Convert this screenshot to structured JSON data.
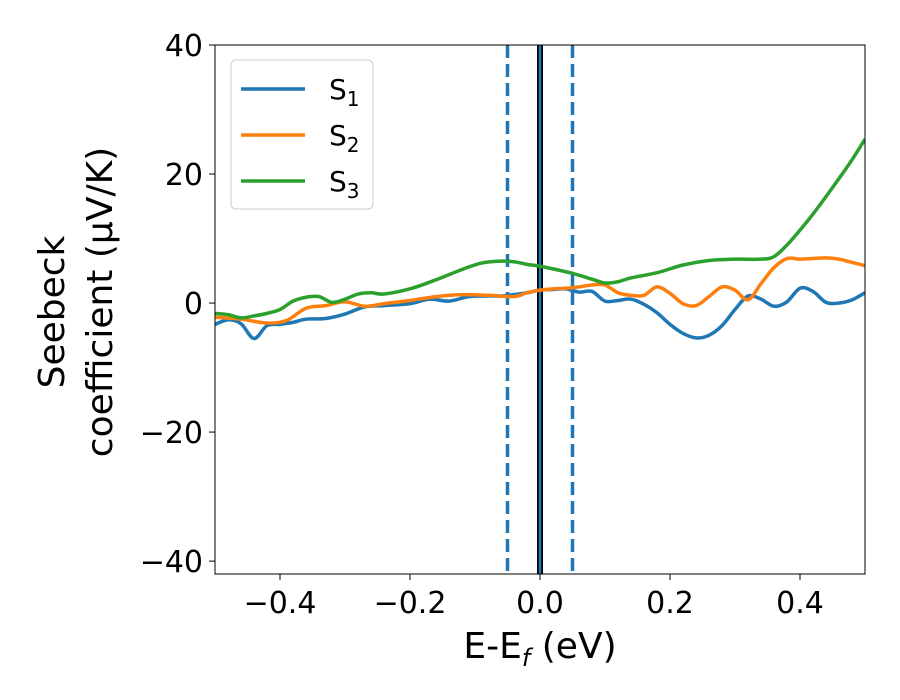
{
  "chart_data": {
    "type": "line",
    "xlabel": {
      "base": "E-E",
      "sub": "f",
      "unit": " (eV)"
    },
    "ylabel": {
      "line1": "Seebeck",
      "line2": "coefficient  (μV/K)"
    },
    "xlim": [
      -0.5,
      0.5
    ],
    "ylim": [
      -42,
      40
    ],
    "xticks": [
      -0.4,
      -0.2,
      0.0,
      0.2,
      0.4
    ],
    "xtick_labels": [
      "−0.4",
      "−0.2",
      "0.0",
      "0.2",
      "0.4"
    ],
    "yticks": [
      -40,
      -20,
      0,
      20,
      40
    ],
    "ytick_labels": [
      "−40",
      "−20",
      "0",
      "20",
      "40"
    ],
    "grid": false,
    "legend_position": "top-left",
    "vlines": [
      {
        "x": -0.05,
        "style": "dashed",
        "color": "#1f77b4"
      },
      {
        "x": 0.05,
        "style": "dashed",
        "color": "#1f77b4"
      },
      {
        "x": 0.0,
        "style": "solid",
        "color": "#000000"
      },
      {
        "x": 0.0,
        "style": "solid",
        "color": "#1f77b4"
      }
    ],
    "series": [
      {
        "name": "S",
        "sub": "1",
        "color": "#1f77b4",
        "points": [
          [
            -0.5,
            -3.3
          ],
          [
            -0.48,
            -2.6
          ],
          [
            -0.46,
            -3.2
          ],
          [
            -0.44,
            -5.5
          ],
          [
            -0.42,
            -3.5
          ],
          [
            -0.4,
            -3.3
          ],
          [
            -0.38,
            -3.0
          ],
          [
            -0.36,
            -2.5
          ],
          [
            -0.33,
            -2.4
          ],
          [
            -0.3,
            -1.7
          ],
          [
            -0.27,
            -0.6
          ],
          [
            -0.24,
            -0.4
          ],
          [
            -0.2,
            -0.1
          ],
          [
            -0.17,
            0.6
          ],
          [
            -0.14,
            0.3
          ],
          [
            -0.11,
            1.0
          ],
          [
            -0.08,
            1.1
          ],
          [
            -0.06,
            1.1
          ],
          [
            -0.04,
            1.3
          ],
          [
            -0.02,
            1.6
          ],
          [
            0.0,
            2.0
          ],
          [
            0.02,
            2.1
          ],
          [
            0.04,
            2.2
          ],
          [
            0.06,
            1.7
          ],
          [
            0.08,
            1.8
          ],
          [
            0.1,
            0.3
          ],
          [
            0.12,
            0.4
          ],
          [
            0.14,
            0.6
          ],
          [
            0.16,
            -0.2
          ],
          [
            0.18,
            -1.5
          ],
          [
            0.2,
            -3.3
          ],
          [
            0.22,
            -4.7
          ],
          [
            0.24,
            -5.4
          ],
          [
            0.26,
            -5.0
          ],
          [
            0.28,
            -3.5
          ],
          [
            0.3,
            -1.0
          ],
          [
            0.32,
            1.1
          ],
          [
            0.34,
            0.6
          ],
          [
            0.36,
            -0.5
          ],
          [
            0.38,
            0.2
          ],
          [
            0.4,
            2.3
          ],
          [
            0.42,
            1.8
          ],
          [
            0.44,
            0.1
          ],
          [
            0.46,
            0.0
          ],
          [
            0.48,
            0.5
          ],
          [
            0.5,
            1.6
          ]
        ]
      },
      {
        "name": "S",
        "sub": "2",
        "color": "#ff7f0e",
        "points": [
          [
            -0.5,
            -2.2
          ],
          [
            -0.46,
            -2.5
          ],
          [
            -0.42,
            -3.1
          ],
          [
            -0.39,
            -2.7
          ],
          [
            -0.36,
            -0.8
          ],
          [
            -0.33,
            -0.4
          ],
          [
            -0.3,
            0.2
          ],
          [
            -0.27,
            -0.5
          ],
          [
            -0.24,
            -0.1
          ],
          [
            -0.2,
            0.4
          ],
          [
            -0.16,
            1.0
          ],
          [
            -0.12,
            1.3
          ],
          [
            -0.08,
            1.2
          ],
          [
            -0.04,
            1.0
          ],
          [
            -0.02,
            1.6
          ],
          [
            0.0,
            2.0
          ],
          [
            0.02,
            2.2
          ],
          [
            0.04,
            2.3
          ],
          [
            0.06,
            2.5
          ],
          [
            0.08,
            2.8
          ],
          [
            0.1,
            2.8
          ],
          [
            0.12,
            1.6
          ],
          [
            0.14,
            1.2
          ],
          [
            0.16,
            1.2
          ],
          [
            0.18,
            2.5
          ],
          [
            0.2,
            1.5
          ],
          [
            0.22,
            -0.1
          ],
          [
            0.24,
            -0.4
          ],
          [
            0.26,
            1.0
          ],
          [
            0.28,
            2.5
          ],
          [
            0.3,
            2.0
          ],
          [
            0.32,
            0.5
          ],
          [
            0.34,
            3.0
          ],
          [
            0.36,
            5.5
          ],
          [
            0.38,
            6.9
          ],
          [
            0.4,
            6.8
          ],
          [
            0.42,
            6.9
          ],
          [
            0.44,
            7.0
          ],
          [
            0.46,
            6.8
          ],
          [
            0.48,
            6.3
          ],
          [
            0.5,
            5.8
          ]
        ]
      },
      {
        "name": "S",
        "sub": "3",
        "color": "#2ca02c",
        "points": [
          [
            -0.5,
            -1.6
          ],
          [
            -0.48,
            -1.8
          ],
          [
            -0.46,
            -2.3
          ],
          [
            -0.44,
            -2.0
          ],
          [
            -0.42,
            -1.6
          ],
          [
            -0.4,
            -1.0
          ],
          [
            -0.38,
            0.3
          ],
          [
            -0.36,
            0.9
          ],
          [
            -0.34,
            1.0
          ],
          [
            -0.32,
            0.1
          ],
          [
            -0.3,
            0.6
          ],
          [
            -0.28,
            1.4
          ],
          [
            -0.26,
            1.6
          ],
          [
            -0.24,
            1.4
          ],
          [
            -0.2,
            2.2
          ],
          [
            -0.16,
            3.6
          ],
          [
            -0.12,
            5.2
          ],
          [
            -0.09,
            6.2
          ],
          [
            -0.06,
            6.5
          ],
          [
            -0.04,
            6.4
          ],
          [
            -0.02,
            6.0
          ],
          [
            0.0,
            5.7
          ],
          [
            0.02,
            5.3
          ],
          [
            0.05,
            4.6
          ],
          [
            0.08,
            3.7
          ],
          [
            0.1,
            3.1
          ],
          [
            0.12,
            3.3
          ],
          [
            0.14,
            3.9
          ],
          [
            0.18,
            4.7
          ],
          [
            0.22,
            5.9
          ],
          [
            0.26,
            6.6
          ],
          [
            0.3,
            6.8
          ],
          [
            0.34,
            6.8
          ],
          [
            0.36,
            7.2
          ],
          [
            0.38,
            9.0
          ],
          [
            0.4,
            11.3
          ],
          [
            0.42,
            13.8
          ],
          [
            0.44,
            16.5
          ],
          [
            0.46,
            19.3
          ],
          [
            0.48,
            22.2
          ],
          [
            0.5,
            25.4
          ]
        ]
      }
    ]
  }
}
